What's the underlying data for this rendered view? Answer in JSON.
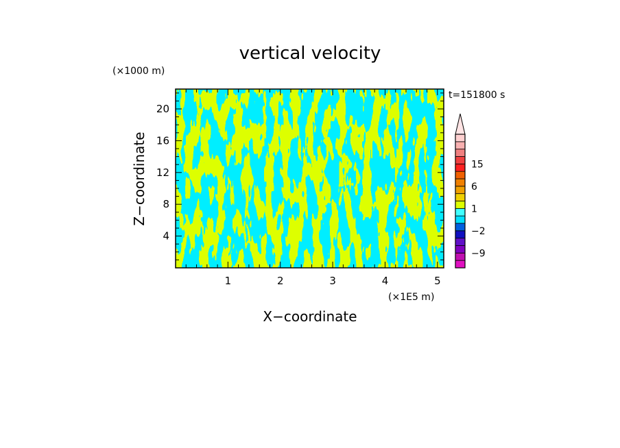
{
  "chart_data": {
    "type": "heatmap",
    "title": "vertical velocity",
    "xlabel": "X−coordinate",
    "ylabel": "Z−coordinate",
    "x_unit": "(×1E5 m)",
    "y_unit": "(×1000 m)",
    "time_label": "t=151800 s",
    "xlim": [
      0,
      5.12
    ],
    "ylim": [
      0,
      22.5
    ],
    "x_ticks": [
      1,
      2,
      3,
      4,
      5
    ],
    "x_tick_labels": [
      "1",
      "2",
      "3",
      "4",
      "5"
    ],
    "y_ticks": [
      4,
      8,
      12,
      16,
      20
    ],
    "y_tick_labels": [
      "4",
      "8",
      "12",
      "16",
      "20"
    ],
    "field_colors": {
      "positive": "#ddff00",
      "negative": "#00eeff"
    },
    "colorbar": {
      "extend": "max",
      "colors": [
        "#e010c0",
        "#c010b0",
        "#8000c0",
        "#6010c8",
        "#1010c0",
        "#0060e0",
        "#00e0ff",
        "#40ffff",
        "#ddff00",
        "#f0d000",
        "#f0a000",
        "#f08000",
        "#f06000",
        "#ff2020",
        "#f04040",
        "#f08080",
        "#f8b0b0",
        "#ffd0d0"
      ],
      "levels": [
        -12,
        -9,
        -6,
        -4,
        -2,
        -1,
        0,
        1,
        2,
        4,
        6,
        8,
        10,
        15,
        20,
        25
      ],
      "labels": [
        "15",
        "6",
        "1",
        "−2",
        "−9"
      ],
      "label_values": [
        15,
        6,
        1,
        -2,
        -9
      ]
    }
  }
}
